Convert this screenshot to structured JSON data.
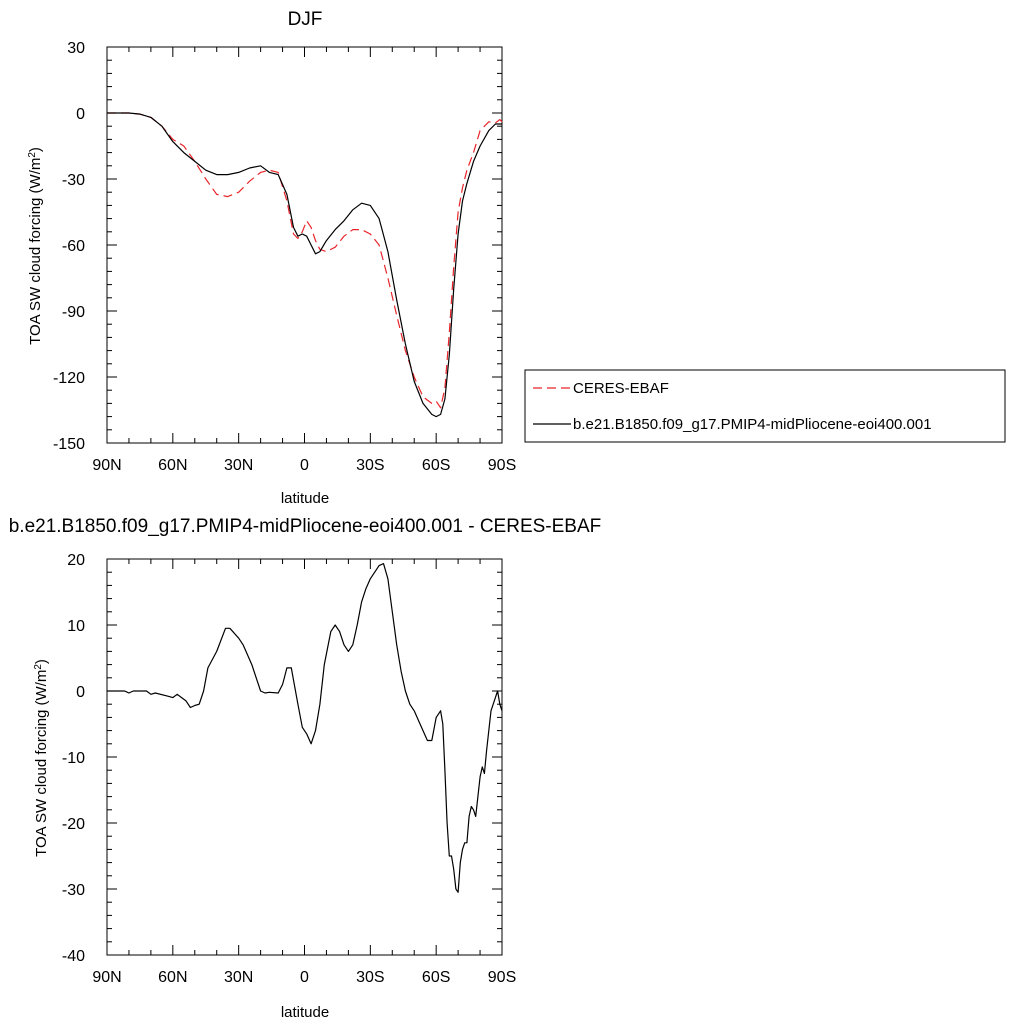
{
  "chart_data": [
    {
      "type": "line",
      "title": "DJF",
      "xlabel": "latitude",
      "ylabel": "TOA SW cloud forcing (W/m",
      "ylabel_sup": "2",
      "ylabel_close": ")",
      "xlim": [
        90,
        -90
      ],
      "ylim": [
        -150,
        30
      ],
      "xticks": [
        90,
        60,
        30,
        0,
        -30,
        -60,
        -90
      ],
      "xtick_labels": [
        "90N",
        "60N",
        "30N",
        "0",
        "30S",
        "60S",
        "90S"
      ],
      "yticks": [
        30,
        0,
        -30,
        -60,
        -90,
        -120,
        -150
      ],
      "ytick_labels": [
        "30",
        "0",
        "-30",
        "-60",
        "-90",
        "-120",
        "-150"
      ],
      "legend_position": "right",
      "series": [
        {
          "name": "CERES-EBAF",
          "color": "#e8252b",
          "dash": "dashed",
          "x": [
            90,
            85,
            80,
            75,
            70,
            65,
            60,
            55,
            50,
            45,
            40,
            35,
            30,
            25,
            20,
            16,
            12,
            8,
            5,
            3,
            1,
            -1,
            -3,
            -5,
            -7,
            -10,
            -14,
            -18,
            -22,
            -26,
            -30,
            -34,
            -38,
            -42,
            -46,
            -50,
            -54,
            -58,
            -60,
            -62,
            -64,
            -66,
            -68,
            -70,
            -72,
            -74,
            -77,
            -80,
            -84,
            -87,
            -89,
            -90
          ],
          "y": [
            0,
            0,
            0,
            -0.5,
            -2,
            -6,
            -12,
            -15,
            -22,
            -30,
            -37,
            -38,
            -36,
            -31,
            -27,
            -26,
            -27,
            -40,
            -55,
            -57,
            -54,
            -49,
            -52,
            -58,
            -62,
            -63,
            -61,
            -56,
            -53,
            -53,
            -55,
            -60,
            -75,
            -92,
            -108,
            -120,
            -129,
            -132,
            -131,
            -134,
            -125,
            -100,
            -70,
            -45,
            -34,
            -26,
            -18,
            -8,
            -4,
            -4.5,
            -3,
            -4
          ]
        },
        {
          "name": "b.e21.B1850.f09_g17.PMIP4-midPliocene-eoi400.001",
          "color": "#000000",
          "dash": "solid",
          "x": [
            90,
            85,
            80,
            75,
            70,
            65,
            60,
            55,
            50,
            45,
            40,
            35,
            30,
            25,
            20,
            16,
            12,
            8,
            5,
            3,
            1,
            -1,
            -3,
            -5,
            -7,
            -10,
            -14,
            -18,
            -22,
            -26,
            -30,
            -34,
            -38,
            -42,
            -46,
            -50,
            -54,
            -58,
            -60,
            -62,
            -64,
            -66,
            -68,
            -70,
            -72,
            -74,
            -77,
            -80,
            -84,
            -87,
            -89,
            -90
          ],
          "y": [
            0,
            0,
            0,
            -0.5,
            -2,
            -6,
            -13,
            -18,
            -22,
            -26,
            -28,
            -28,
            -27,
            -25,
            -24,
            -27,
            -28,
            -37,
            -52,
            -56,
            -55,
            -56,
            -60,
            -64,
            -63,
            -58,
            -53,
            -49,
            -44,
            -41,
            -42,
            -48,
            -63,
            -85,
            -105,
            -122,
            -132,
            -137,
            -138,
            -137,
            -130,
            -110,
            -80,
            -55,
            -40,
            -32,
            -22,
            -15,
            -8,
            -5,
            -5,
            -5
          ]
        }
      ]
    },
    {
      "type": "line",
      "title": "b.e21.B1850.f09_g17.PMIP4-midPliocene-eoi400.001 - CERES-EBAF",
      "xlabel": "latitude",
      "ylabel": "TOA SW cloud forcing (W/m",
      "ylabel_sup": "2",
      "ylabel_close": ")",
      "xlim": [
        90,
        -90
      ],
      "ylim": [
        -40,
        20
      ],
      "xticks": [
        90,
        60,
        30,
        0,
        -30,
        -60,
        -90
      ],
      "xtick_labels": [
        "90N",
        "60N",
        "30N",
        "0",
        "30S",
        "60S",
        "90S"
      ],
      "yticks": [
        20,
        10,
        0,
        -10,
        -20,
        -30,
        -40
      ],
      "ytick_labels": [
        "20",
        "10",
        "0",
        "-10",
        "-20",
        "-30",
        "-40"
      ],
      "series": [
        {
          "color": "#000000",
          "dash": "solid",
          "x": [
            90,
            82,
            80,
            78,
            72,
            70,
            68,
            62,
            60,
            58,
            56,
            54,
            52,
            50,
            48,
            46,
            44,
            40,
            36,
            34,
            30,
            28,
            24,
            22,
            20,
            18,
            16,
            12,
            10,
            8,
            6,
            3,
            1,
            -1,
            -3,
            -5,
            -7,
            -9,
            -12,
            -14,
            -16,
            -18,
            -20,
            -22,
            -24,
            -26,
            -28,
            -30,
            -32,
            -34,
            -36,
            -38,
            -40,
            -42,
            -44,
            -46,
            -48,
            -50,
            -52,
            -54,
            -56,
            -58,
            -60,
            -62,
            -63,
            -64,
            -65,
            -66,
            -67,
            -68,
            -69,
            -70,
            -71,
            -72,
            -73,
            -74,
            -75,
            -76,
            -77,
            -78,
            -79,
            -80,
            -81,
            -82,
            -83,
            -84,
            -85,
            -86,
            -87,
            -88,
            -89,
            -90
          ],
          "y": [
            0,
            0,
            -0.3,
            0,
            0,
            -0.5,
            -0.3,
            -0.8,
            -1,
            -0.5,
            -1,
            -1.5,
            -2.5,
            -2.2,
            -2,
            0,
            3.5,
            6,
            9.5,
            9.5,
            8,
            7,
            4,
            2,
            0,
            -0.3,
            -0.2,
            -0.3,
            1,
            3.5,
            3.5,
            -2,
            -5.5,
            -6.5,
            -8,
            -6,
            -2,
            4,
            9,
            10,
            9,
            7,
            6,
            7,
            10,
            13.5,
            15.5,
            17,
            18,
            19,
            19.3,
            17,
            12,
            7,
            3,
            0,
            -2,
            -3,
            -4.5,
            -6,
            -7.5,
            -7.5,
            -4,
            -3,
            -5,
            -12,
            -20,
            -25,
            -25,
            -27,
            -30,
            -30.5,
            -26,
            -24,
            -23,
            -23,
            -19,
            -17.5,
            -18,
            -19,
            -16,
            -13,
            -11.5,
            -12.5,
            -9,
            -6,
            -3,
            -2,
            -1,
            0,
            -2,
            -3
          ]
        }
      ]
    }
  ]
}
